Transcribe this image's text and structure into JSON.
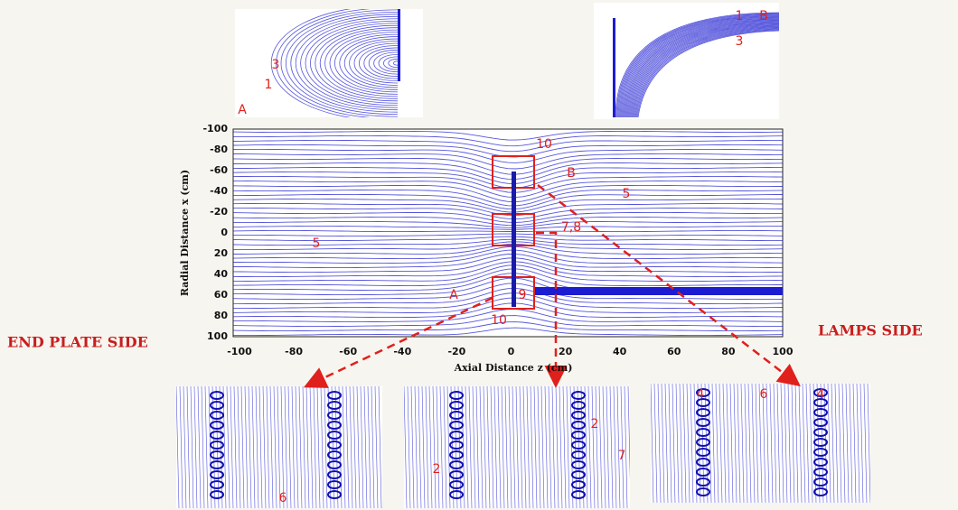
{
  "main_plot": {
    "y_axis_label": "Radial Distance x (cm)",
    "x_axis_label": "Axial Distance z (cm)",
    "y_ticks": [
      "-100",
      "-80",
      "-60",
      "-40",
      "-20",
      "0",
      "20",
      "40",
      "60",
      "80",
      "100"
    ],
    "x_ticks": [
      "-100",
      "-80",
      "-60",
      "-40",
      "-20",
      "0",
      "20",
      "40",
      "60",
      "80",
      "100"
    ],
    "annotations": [
      "10",
      "B",
      "5",
      "7,8",
      "5",
      "A",
      "9",
      "10"
    ]
  },
  "side_labels": {
    "left": "END PLATE SIDE",
    "right": "LAMPS SIDE"
  },
  "insets": {
    "top_left": [
      "3",
      "1",
      "A"
    ],
    "top_right": [
      "1",
      "B",
      "3"
    ],
    "bottom_left": [
      "6"
    ],
    "bottom_middle": [
      "2",
      "7",
      "2"
    ],
    "bottom_right": [
      "4",
      "6",
      "4"
    ]
  }
}
